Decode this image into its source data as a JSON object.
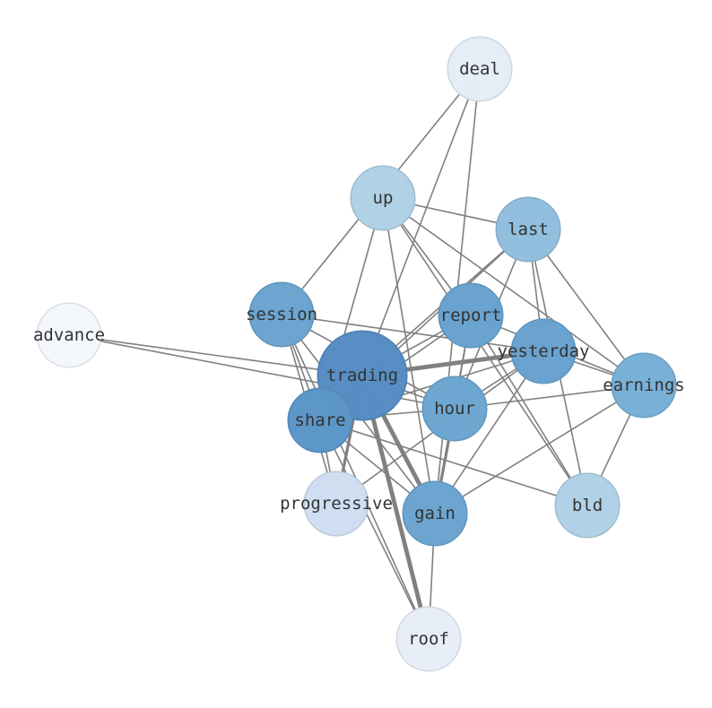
{
  "nodes": [
    {
      "id": "deal",
      "label": "deal",
      "color": "#e6eff9"
    },
    {
      "id": "up",
      "label": "up",
      "color": "#b1d2e7"
    },
    {
      "id": "last",
      "label": "last",
      "color": "#92c0df"
    },
    {
      "id": "session",
      "label": "session",
      "color": "#6da6d1"
    },
    {
      "id": "report",
      "label": "report",
      "color": "#6aa4d0"
    },
    {
      "id": "advance",
      "label": "advance",
      "color": "#f4f8fd"
    },
    {
      "id": "yesterday",
      "label": "yesterday",
      "color": "#6aa4d0"
    },
    {
      "id": "trading",
      "label": "trading",
      "color": "#588ec4"
    },
    {
      "id": "earnings",
      "label": "earnings",
      "color": "#7ab1d9"
    },
    {
      "id": "hour",
      "label": "hour",
      "color": "#6ea8d2"
    },
    {
      "id": "share",
      "label": "share",
      "color": "#5d97ca"
    },
    {
      "id": "progressive",
      "label": "progressive",
      "color": "#d0e1f2"
    },
    {
      "id": "gain",
      "label": "gain",
      "color": "#6da6d1"
    },
    {
      "id": "bld",
      "label": "bld",
      "color": "#b1d2e7"
    },
    {
      "id": "roof",
      "label": "roof",
      "color": "#e8f0fa"
    }
  ],
  "edges": [
    [
      "deal",
      "session",
      1
    ],
    [
      "deal",
      "trading",
      1
    ],
    [
      "deal",
      "gain",
      1
    ],
    [
      "up",
      "last",
      1
    ],
    [
      "up",
      "share",
      1
    ],
    [
      "up",
      "report",
      1
    ],
    [
      "up",
      "bld",
      1
    ],
    [
      "up",
      "gain",
      1
    ],
    [
      "up",
      "earnings",
      1
    ],
    [
      "last",
      "trading",
      1
    ],
    [
      "last",
      "share",
      1
    ],
    [
      "last",
      "hour",
      1
    ],
    [
      "last",
      "yesterday",
      1
    ],
    [
      "last",
      "earnings",
      1
    ],
    [
      "last",
      "bld",
      1
    ],
    [
      "session",
      "yesterday",
      1
    ],
    [
      "session",
      "hour",
      1
    ],
    [
      "session",
      "gain",
      1
    ],
    [
      "session",
      "progressive",
      1
    ],
    [
      "session",
      "roof",
      1
    ],
    [
      "session",
      "share",
      1
    ],
    [
      "advance",
      "trading",
      1
    ],
    [
      "advance",
      "hour",
      1
    ],
    [
      "report",
      "trading",
      1
    ],
    [
      "report",
      "share",
      1
    ],
    [
      "report",
      "gain",
      1
    ],
    [
      "report",
      "earnings",
      1
    ],
    [
      "report",
      "bld",
      1
    ],
    [
      "report",
      "hour",
      1
    ],
    [
      "yesterday",
      "trading",
      3
    ],
    [
      "yesterday",
      "share",
      1
    ],
    [
      "yesterday",
      "hour",
      1
    ],
    [
      "yesterday",
      "progressive",
      1
    ],
    [
      "yesterday",
      "gain",
      1
    ],
    [
      "yesterday",
      "earnings",
      1
    ],
    [
      "trading",
      "gain",
      3
    ],
    [
      "trading",
      "roof",
      3
    ],
    [
      "trading",
      "progressive",
      2
    ],
    [
      "trading",
      "share",
      1
    ],
    [
      "trading",
      "hour",
      1
    ],
    [
      "hour",
      "earnings",
      1
    ],
    [
      "hour",
      "gain",
      2
    ],
    [
      "hour",
      "share",
      1
    ],
    [
      "share",
      "bld",
      1
    ],
    [
      "share",
      "gain",
      1
    ],
    [
      "share",
      "roof",
      1
    ],
    [
      "share",
      "progressive",
      1
    ],
    [
      "earnings",
      "gain",
      1
    ],
    [
      "earnings",
      "bld",
      1
    ],
    [
      "gain",
      "roof",
      1
    ]
  ],
  "edge_color": "#808080"
}
